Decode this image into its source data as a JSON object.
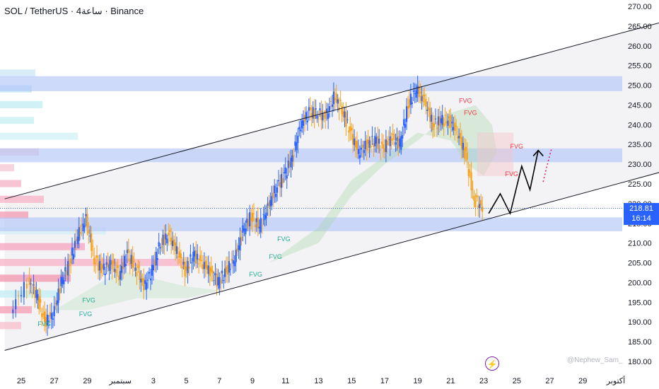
{
  "header": {
    "title": "SOL / TetherUS · 4ساعة · Binance"
  },
  "price_tag": {
    "price": "218.81",
    "countdown": "16:14"
  },
  "watermark": "@Nephew_Sam_",
  "icons": {
    "bolt": "lightning-icon"
  },
  "colors": {
    "up": "#2962ff",
    "down": "#f7a21b",
    "zone": "#b3c6f7",
    "tag": "#2962ff",
    "fvg_red": "#f23645",
    "fvg_green": "#22ab94",
    "cloud": "#a5d6a7"
  },
  "chart_data": {
    "type": "candlestick",
    "title": "",
    "xlabel": "",
    "ylabel": "",
    "ylim": [
      180,
      270
    ],
    "y_ticks": [
      "180.00",
      "185.00",
      "190.00",
      "195.00",
      "200.00",
      "205.00",
      "210.00",
      "215.00",
      "220.00",
      "225.00",
      "230.00",
      "235.00",
      "240.00",
      "245.00",
      "250.00",
      "255.00",
      "260.00",
      "265.00",
      "270.00"
    ],
    "x_ticks": [
      {
        "label": "25",
        "day": -13
      },
      {
        "label": "27",
        "day": -11
      },
      {
        "label": "29",
        "day": -9
      },
      {
        "label": "سبتمبر",
        "day": -7
      },
      {
        "label": "3",
        "day": -5
      },
      {
        "label": "5",
        "day": -3
      },
      {
        "label": "7",
        "day": -1
      },
      {
        "label": "9",
        "day": 1
      },
      {
        "label": "11",
        "day": 3
      },
      {
        "label": "13",
        "day": 5
      },
      {
        "label": "15",
        "day": 7
      },
      {
        "label": "17",
        "day": 9
      },
      {
        "label": "19",
        "day": 11
      },
      {
        "label": "21",
        "day": 13
      },
      {
        "label": "23",
        "day": 15
      },
      {
        "label": "25",
        "day": 17
      },
      {
        "label": "27",
        "day": 19
      },
      {
        "label": "29",
        "day": 21
      },
      {
        "label": "أكتوبر",
        "day": 23
      }
    ],
    "current_price": 218.81,
    "series": [
      {
        "day": -13.5,
        "close": 193
      },
      {
        "day": -12.5,
        "close": 200
      },
      {
        "day": -12,
        "close": 197
      },
      {
        "day": -11.5,
        "close": 190
      },
      {
        "day": -11,
        "close": 192
      },
      {
        "day": -10.5,
        "close": 200
      },
      {
        "day": -10,
        "close": 205
      },
      {
        "day": -9.5,
        "close": 212
      },
      {
        "day": -9,
        "close": 216
      },
      {
        "day": -8.5,
        "close": 206
      },
      {
        "day": -8,
        "close": 203
      },
      {
        "day": -7.5,
        "close": 205
      },
      {
        "day": -7,
        "close": 202
      },
      {
        "day": -6.5,
        "close": 207
      },
      {
        "day": -6,
        "close": 204
      },
      {
        "day": -5.5,
        "close": 199
      },
      {
        "day": -5,
        "close": 203
      },
      {
        "day": -4.5,
        "close": 210
      },
      {
        "day": -4,
        "close": 212
      },
      {
        "day": -3.5,
        "close": 208
      },
      {
        "day": -3,
        "close": 203
      },
      {
        "day": -2.5,
        "close": 207
      },
      {
        "day": -2,
        "close": 205
      },
      {
        "day": -1.5,
        "close": 203
      },
      {
        "day": -1,
        "close": 200
      },
      {
        "day": -0.5,
        "close": 203
      },
      {
        "day": 0,
        "close": 206
      },
      {
        "day": 0.5,
        "close": 213
      },
      {
        "day": 1,
        "close": 217
      },
      {
        "day": 1.5,
        "close": 214
      },
      {
        "day": 2,
        "close": 219
      },
      {
        "day": 2.5,
        "close": 224
      },
      {
        "day": 3,
        "close": 227
      },
      {
        "day": 3.5,
        "close": 232
      },
      {
        "day": 4,
        "close": 240
      },
      {
        "day": 4.5,
        "close": 243
      },
      {
        "day": 5,
        "close": 243
      },
      {
        "day": 5.5,
        "close": 242
      },
      {
        "day": 6,
        "close": 247
      },
      {
        "day": 6.5,
        "close": 244
      },
      {
        "day": 7,
        "close": 238
      },
      {
        "day": 7.5,
        "close": 233
      },
      {
        "day": 8,
        "close": 235
      },
      {
        "day": 8.5,
        "close": 236
      },
      {
        "day": 9,
        "close": 234
      },
      {
        "day": 9.5,
        "close": 237
      },
      {
        "day": 10,
        "close": 235
      },
      {
        "day": 10.5,
        "close": 245
      },
      {
        "day": 11,
        "close": 249
      },
      {
        "day": 11.5,
        "close": 246
      },
      {
        "day": 12,
        "close": 240
      },
      {
        "day": 12.5,
        "close": 241
      },
      {
        "day": 13,
        "close": 241
      },
      {
        "day": 13.5,
        "close": 238
      },
      {
        "day": 14,
        "close": 232
      },
      {
        "day": 14.5,
        "close": 221
      },
      {
        "day": 15,
        "close": 218.81
      }
    ],
    "channel": [
      {
        "from": [
          -14,
          221.2
        ],
        "to": [
          28,
          268.5
        ]
      },
      {
        "from": [
          -14,
          182.8
        ],
        "to": [
          28,
          230.6
        ]
      }
    ],
    "zones": [
      [
        248.5,
        252.3
      ],
      [
        230.5,
        234.0
      ],
      [
        213.0,
        216.5
      ]
    ],
    "fvg_labels": [
      {
        "text": "FVG",
        "day": -12,
        "price": 189,
        "color": "green"
      },
      {
        "text": "FVG",
        "day": -9.3,
        "price": 195,
        "color": "green"
      },
      {
        "text": "FVG",
        "day": -9.5,
        "price": 191.5,
        "color": "green"
      },
      {
        "text": "FVG",
        "day": 0.8,
        "price": 201.5,
        "color": "green"
      },
      {
        "text": "FVG",
        "day": 2,
        "price": 206,
        "color": "green"
      },
      {
        "text": "FVG",
        "day": 2.5,
        "price": 210.5,
        "color": "green"
      },
      {
        "text": "FVG",
        "day": 13.5,
        "price": 245.5,
        "color": "red"
      },
      {
        "text": "FVG",
        "day": 13.8,
        "price": 242.5,
        "color": "red"
      },
      {
        "text": "FVG",
        "day": 16.6,
        "price": 234,
        "color": "red"
      },
      {
        "text": "FVG",
        "day": 16.3,
        "price": 227,
        "color": "red"
      }
    ],
    "projection": [
      [
        15.3,
        217.5
      ],
      [
        16,
        222.5
      ],
      [
        16.6,
        217.5
      ],
      [
        17.3,
        229.5
      ],
      [
        17.8,
        223.5
      ],
      [
        18.3,
        233.5
      ]
    ]
  }
}
